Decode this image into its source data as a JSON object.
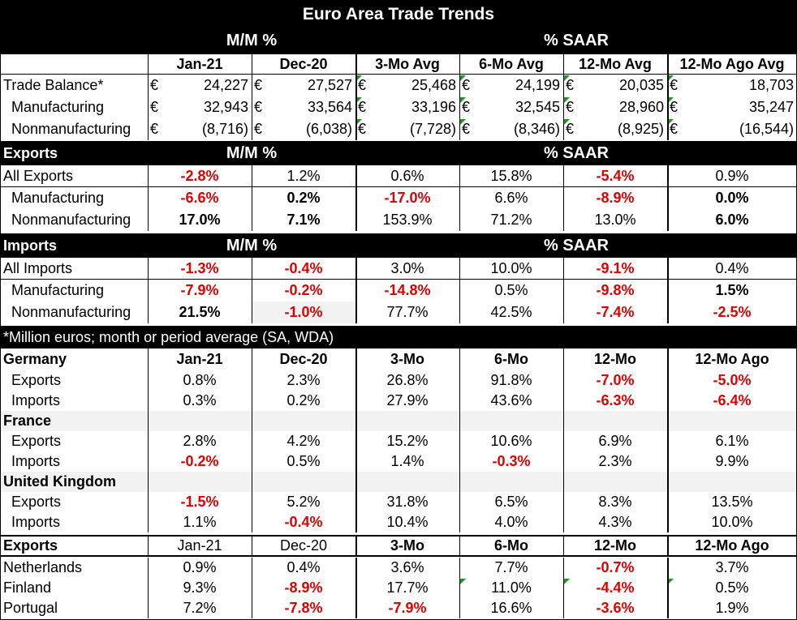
{
  "title": "Euro Area Trade Trends",
  "header_labels": {
    "mm": "M/M %",
    "saar": "% SAAR"
  },
  "columns": [
    "Jan-21",
    "Dec-20",
    "3-Mo Avg",
    "6-Mo Avg",
    "12-Mo Avg",
    "12-Mo Ago Avg"
  ],
  "currency_symbol": "€",
  "trade_balance": [
    {
      "label": "Trade Balance*",
      "values": [
        "24,227",
        "27,527",
        "25,468",
        "24,199",
        "20,035",
        "18,703"
      ]
    },
    {
      "label": "Manufacturing",
      "values": [
        "32,943",
        "33,564",
        "33,196",
        "32,545",
        "28,960",
        "35,247"
      ]
    },
    {
      "label": "Nonmanufacturing",
      "values": [
        "(8,716)",
        "(6,038)",
        "(7,728)",
        "(8,346)",
        "(8,925)",
        "(16,544)"
      ]
    }
  ],
  "exports_section": {
    "title": "Exports",
    "rows": [
      {
        "label": "All Exports",
        "values": [
          "-2.8%",
          "1.2%",
          "0.6%",
          "15.8%",
          "-5.4%",
          "0.9%"
        ]
      },
      {
        "label": "Manufacturing",
        "values": [
          "-6.6%",
          "0.2%",
          "-17.0%",
          "6.6%",
          "-8.9%",
          "0.0%"
        ]
      },
      {
        "label": "Nonmanufacturing",
        "values": [
          "17.0%",
          "7.1%",
          "153.9%",
          "71.2%",
          "13.0%",
          "6.0%"
        ]
      }
    ]
  },
  "imports_section": {
    "title": "Imports",
    "rows": [
      {
        "label": "All Imports",
        "values": [
          "-1.3%",
          "-0.4%",
          "3.0%",
          "10.0%",
          "-9.1%",
          "0.4%"
        ]
      },
      {
        "label": "Manufacturing",
        "values": [
          "-7.9%",
          "-0.2%",
          "-14.8%",
          "0.5%",
          "-9.8%",
          "1.5%"
        ]
      },
      {
        "label": "Nonmanufacturing",
        "values": [
          "21.5%",
          "-1.0%",
          "77.7%",
          "42.5%",
          "-7.4%",
          "-2.5%"
        ]
      }
    ]
  },
  "note": "*Million euros; month or period average (SA, WDA)",
  "country_columns": [
    "Jan-21",
    "Dec-20",
    "3-Mo",
    "6-Mo",
    "12-Mo",
    "12-Mo Ago"
  ],
  "countries": [
    {
      "name": "Germany",
      "exports": {
        "label": "Exports",
        "values": [
          "0.8%",
          "2.3%",
          "26.8%",
          "91.8%",
          "-7.0%",
          "-5.0%"
        ]
      },
      "imports": {
        "label": "Imports",
        "values": [
          "0.3%",
          "0.2%",
          "27.9%",
          "43.6%",
          "-6.3%",
          "-6.4%"
        ]
      }
    },
    {
      "name": "France",
      "exports": {
        "label": "Exports",
        "values": [
          "2.8%",
          "4.2%",
          "15.2%",
          "10.6%",
          "6.9%",
          "6.1%"
        ]
      },
      "imports": {
        "label": "Imports",
        "values": [
          "-0.2%",
          "0.5%",
          "1.4%",
          "-0.3%",
          "2.3%",
          "9.9%"
        ]
      }
    },
    {
      "name": "United Kingdom",
      "exports": {
        "label": "Exports",
        "values": [
          "-1.5%",
          "5.2%",
          "31.8%",
          "6.5%",
          "8.3%",
          "13.5%"
        ]
      },
      "imports": {
        "label": "Imports",
        "values": [
          "1.1%",
          "-0.4%",
          "10.4%",
          "4.0%",
          "4.3%",
          "10.0%"
        ]
      }
    }
  ],
  "small_exports": {
    "title": "Exports",
    "rows": [
      {
        "label": "Netherlands",
        "values": [
          "0.9%",
          "0.4%",
          "3.6%",
          "7.7%",
          "-0.7%",
          "3.7%"
        ]
      },
      {
        "label": "Finland",
        "values": [
          "9.3%",
          "-8.9%",
          "17.7%",
          "11.0%",
          "-4.4%",
          "0.5%"
        ]
      },
      {
        "label": "Portugal",
        "values": [
          "7.2%",
          "-7.8%",
          "-7.9%",
          "16.6%",
          "-3.6%",
          "1.9%"
        ]
      }
    ]
  },
  "colors": {
    "negative": "#e30000",
    "header_bg": "#000000",
    "indicator": "#1a9c1a"
  }
}
